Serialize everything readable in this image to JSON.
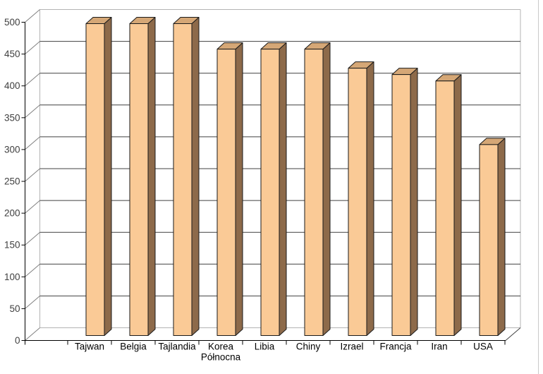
{
  "chart_data": {
    "type": "bar",
    "projection": "3d",
    "title": "",
    "xlabel": "",
    "ylabel": "",
    "categories": [
      "Tajwan",
      "Belgia",
      "Tajlandia",
      "Korea Północna",
      "Libia",
      "Chiny",
      "Izrael",
      "Francja",
      "Iran",
      "USA"
    ],
    "values": [
      490,
      490,
      490,
      450,
      450,
      450,
      420,
      410,
      400,
      300
    ],
    "ylim": [
      0,
      500
    ],
    "ytick_step": 50,
    "yticks": [
      0,
      50,
      100,
      150,
      200,
      250,
      300,
      350,
      400,
      450,
      500
    ],
    "grid": true,
    "legend": "none",
    "colors": {
      "background": "#ffffff",
      "bar_front": "#FACA96",
      "bar_top": "#D5A776",
      "bar_side": "#8D6A4A",
      "bar_outline": "#1a1a1a",
      "gridline": "#404040",
      "wall_edge": "#b3b3b3",
      "axis_diagonal": "#808080",
      "axis_line": "#000000",
      "x_label_color": "#000000",
      "y_label_color": "#404040",
      "window_edge": "#c9c9c9"
    }
  }
}
